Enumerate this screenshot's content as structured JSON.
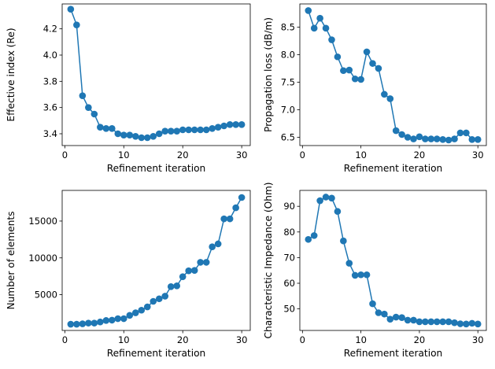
{
  "chart_data": [
    {
      "type": "line",
      "xlabel": "Refinement iteration",
      "ylabel": "Effective index (Re)",
      "xlim": [
        -0.45,
        31.45
      ],
      "ylim": [
        3.31,
        4.39
      ],
      "xticks": [
        0,
        10,
        20,
        30
      ],
      "xtick_labels": [
        "0",
        "10",
        "20",
        "30"
      ],
      "yticks": [
        3.4,
        3.6,
        3.8,
        4.0,
        4.2
      ],
      "ytick_labels": [
        "3.4",
        "3.6",
        "3.8",
        "4.0",
        "4.2"
      ],
      "color": "#1f77b4",
      "marker": "circle",
      "grid": false,
      "series": [
        {
          "x": [
            1,
            2,
            3,
            4,
            5,
            6,
            7,
            8,
            9,
            10,
            11,
            12,
            13,
            14,
            15,
            16,
            17,
            18,
            19,
            20,
            21,
            22,
            23,
            24,
            25,
            26,
            27,
            28,
            29,
            30
          ],
          "y": [
            4.35,
            4.23,
            3.69,
            3.6,
            3.55,
            3.45,
            3.44,
            3.44,
            3.4,
            3.39,
            3.39,
            3.38,
            3.37,
            3.37,
            3.38,
            3.4,
            3.42,
            3.42,
            3.42,
            3.43,
            3.43,
            3.43,
            3.43,
            3.43,
            3.44,
            3.45,
            3.46,
            3.47,
            3.47,
            3.47
          ]
        }
      ]
    },
    {
      "type": "line",
      "xlabel": "Refinement iteration",
      "ylabel": "Propagation loss (dB/m)",
      "xlim": [
        -0.45,
        31.45
      ],
      "ylim": [
        6.35,
        8.92
      ],
      "xticks": [
        0,
        10,
        20,
        30
      ],
      "xtick_labels": [
        "0",
        "10",
        "20",
        "30"
      ],
      "yticks": [
        6.5,
        7.0,
        7.5,
        8.0,
        8.5
      ],
      "ytick_labels": [
        "6.5",
        "7.0",
        "7.5",
        "8.0",
        "8.5"
      ],
      "color": "#1f77b4",
      "marker": "circle",
      "grid": false,
      "series": [
        {
          "x": [
            1,
            2,
            3,
            4,
            5,
            6,
            7,
            8,
            9,
            10,
            11,
            12,
            13,
            14,
            15,
            16,
            17,
            18,
            19,
            20,
            21,
            22,
            23,
            24,
            25,
            26,
            27,
            28,
            29,
            30
          ],
          "y": [
            8.8,
            8.48,
            8.66,
            8.48,
            8.27,
            7.96,
            7.71,
            7.72,
            7.56,
            7.55,
            8.05,
            7.84,
            7.75,
            7.28,
            7.2,
            6.62,
            6.55,
            6.5,
            6.47,
            6.51,
            6.47,
            6.47,
            6.47,
            6.46,
            6.45,
            6.47,
            6.58,
            6.58,
            6.46,
            6.46
          ]
        }
      ]
    },
    {
      "type": "line",
      "xlabel": "Refinement iteration",
      "ylabel": "Number of elements",
      "xlim": [
        -0.45,
        31.45
      ],
      "ylim": [
        150,
        19160
      ],
      "xticks": [
        0,
        10,
        20,
        30
      ],
      "xtick_labels": [
        "0",
        "10",
        "20",
        "30"
      ],
      "yticks": [
        5000,
        10000,
        15000
      ],
      "ytick_labels": [
        "5000",
        "10000",
        "15000"
      ],
      "color": "#1f77b4",
      "marker": "circle",
      "grid": false,
      "series": [
        {
          "x": [
            1,
            2,
            3,
            4,
            5,
            6,
            7,
            8,
            9,
            10,
            11,
            12,
            13,
            14,
            15,
            16,
            17,
            18,
            19,
            20,
            21,
            22,
            23,
            24,
            25,
            26,
            27,
            28,
            29,
            30
          ],
          "y": [
            1000,
            1000,
            1050,
            1150,
            1150,
            1300,
            1500,
            1550,
            1750,
            1750,
            2200,
            2550,
            2900,
            3350,
            4100,
            4450,
            4800,
            6100,
            6200,
            7450,
            8250,
            8300,
            9400,
            9400,
            11500,
            11900,
            15300,
            15300,
            16800,
            18200
          ]
        }
      ]
    },
    {
      "type": "line",
      "xlabel": "Refinement iteration",
      "ylabel": "Characteristic Impedance (Ohm)",
      "xlim": [
        -0.45,
        31.45
      ],
      "ylim": [
        41.6,
        96.2
      ],
      "xticks": [
        0,
        10,
        20,
        30
      ],
      "xtick_labels": [
        "0",
        "10",
        "20",
        "30"
      ],
      "yticks": [
        50,
        60,
        70,
        80,
        90
      ],
      "ytick_labels": [
        "50",
        "60",
        "70",
        "80",
        "90"
      ],
      "color": "#1f77b4",
      "marker": "circle",
      "grid": false,
      "series": [
        {
          "x": [
            1,
            2,
            3,
            4,
            5,
            6,
            7,
            8,
            9,
            10,
            11,
            12,
            13,
            14,
            15,
            16,
            17,
            18,
            19,
            20,
            21,
            22,
            23,
            24,
            25,
            26,
            27,
            28,
            29,
            30
          ],
          "y": [
            77.1,
            78.6,
            92.2,
            93.6,
            93.2,
            88.0,
            76.5,
            67.8,
            63.1,
            63.3,
            63.3,
            52.0,
            48.5,
            48.0,
            46.0,
            46.8,
            46.6,
            45.6,
            45.6,
            45.0,
            45.0,
            45.0,
            45.0,
            45.0,
            45.0,
            44.6,
            44.2,
            44.1,
            44.4,
            44.1
          ]
        }
      ]
    }
  ]
}
